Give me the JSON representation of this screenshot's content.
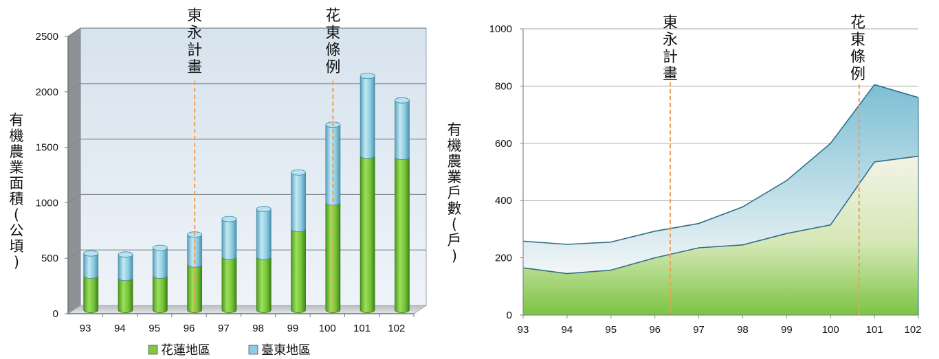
{
  "chart_data": [
    {
      "type": "bar",
      "stacked": true,
      "categories": [
        "93",
        "94",
        "95",
        "96",
        "97",
        "98",
        "99",
        "100",
        "101",
        "102"
      ],
      "series": [
        {
          "name": "花蓮地區",
          "values": [
            310,
            290,
            310,
            410,
            480,
            480,
            730,
            970,
            1390,
            1380
          ],
          "color": "#7ec93f"
        },
        {
          "name": "臺東地區",
          "values": [
            200,
            210,
            250,
            270,
            340,
            430,
            510,
            700,
            720,
            510
          ],
          "color": "#8ecde0"
        }
      ],
      "ylabel": "有機農業面積(公頃)",
      "ylim": [
        0,
        2500
      ],
      "yticks": [
        "0",
        "500",
        "1000",
        "1500",
        "2000",
        "2500"
      ],
      "grid": true,
      "legend": "bottom",
      "annotations": [
        {
          "text": "東永計畫",
          "x": "96"
        },
        {
          "text": "花東條例",
          "x": "100"
        }
      ]
    },
    {
      "type": "area",
      "stacked": true,
      "categories": [
        "93",
        "94",
        "95",
        "96",
        "97",
        "98",
        "99",
        "100",
        "101",
        "102"
      ],
      "series": [
        {
          "values": [
            165,
            145,
            157,
            200,
            235,
            245,
            285,
            315,
            535,
            555
          ],
          "color": "#8dc63f"
        },
        {
          "values": [
            93,
            102,
            98,
            93,
            85,
            133,
            185,
            285,
            270,
            205
          ],
          "color": "#7ec0d6"
        }
      ],
      "ylabel": "有機農業戶數(戶)",
      "ylim": [
        0,
        1000
      ],
      "yticks": [
        "0",
        "200",
        "400",
        "600",
        "800",
        "1000"
      ],
      "grid": true,
      "annotations": [
        {
          "text": "東永計畫",
          "x": 96.35
        },
        {
          "text": "花東條例",
          "x": 100.65
        }
      ]
    }
  ]
}
